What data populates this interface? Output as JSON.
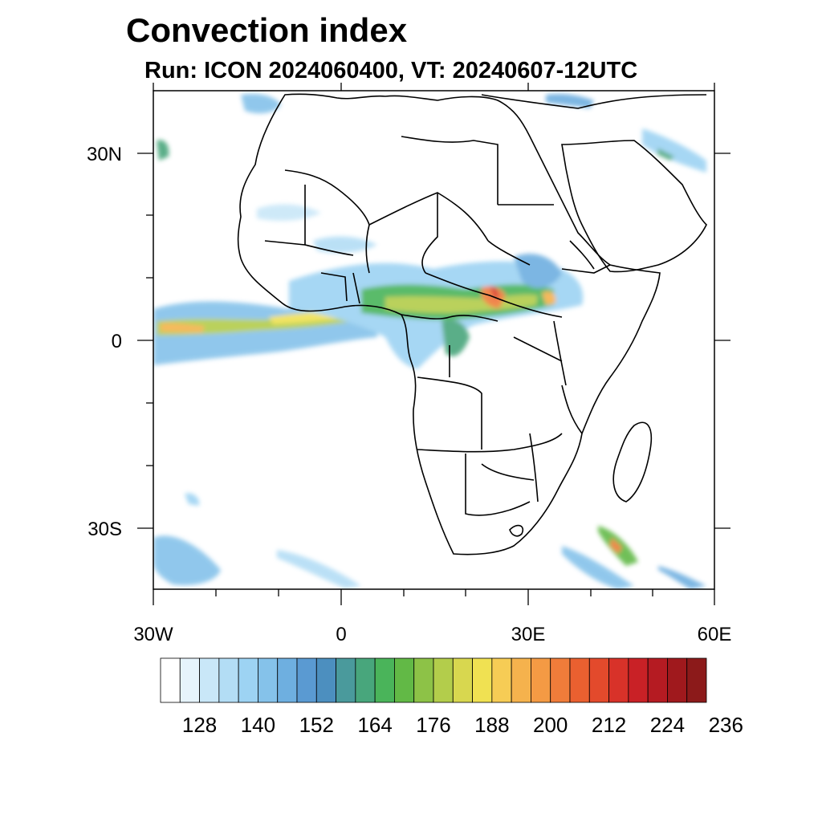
{
  "title": "Convection index",
  "subtitle": "Run: ICON 2024060400,  VT: 20240607-12UTC",
  "map": {
    "lon_range": [
      -30,
      60
    ],
    "lat_range": [
      -40,
      40
    ],
    "x_ticks": [
      {
        "lon": -30,
        "label": "30W"
      },
      {
        "lon": 0,
        "label": "0"
      },
      {
        "lon": 30,
        "label": "30E"
      },
      {
        "lon": 60,
        "label": "60E"
      }
    ],
    "y_ticks": [
      {
        "lat": 30,
        "label": "30N"
      },
      {
        "lat": 0,
        "label": "0"
      },
      {
        "lat": -30,
        "label": "30S"
      }
    ]
  },
  "colorbar": {
    "colors": [
      "#ffffff",
      "#e6f4fc",
      "#c9e7f8",
      "#b3ddf5",
      "#9dd3f3",
      "#85c2ea",
      "#6eafe0",
      "#5a9ad2",
      "#4c8fbf",
      "#4a9a9c",
      "#48a67c",
      "#4ab45a",
      "#62b946",
      "#8dc247",
      "#b3cd4b",
      "#d8d74f",
      "#f0e152",
      "#f6cc55",
      "#f5b24d",
      "#f49a44",
      "#f07c3a",
      "#ea6030",
      "#e34a2c",
      "#d83229",
      "#c92126",
      "#b51b22",
      "#a0191d",
      "#8c1a1a"
    ],
    "labels": [
      "128",
      "140",
      "152",
      "164",
      "176",
      "188",
      "200",
      "212",
      "224",
      "236"
    ]
  }
}
